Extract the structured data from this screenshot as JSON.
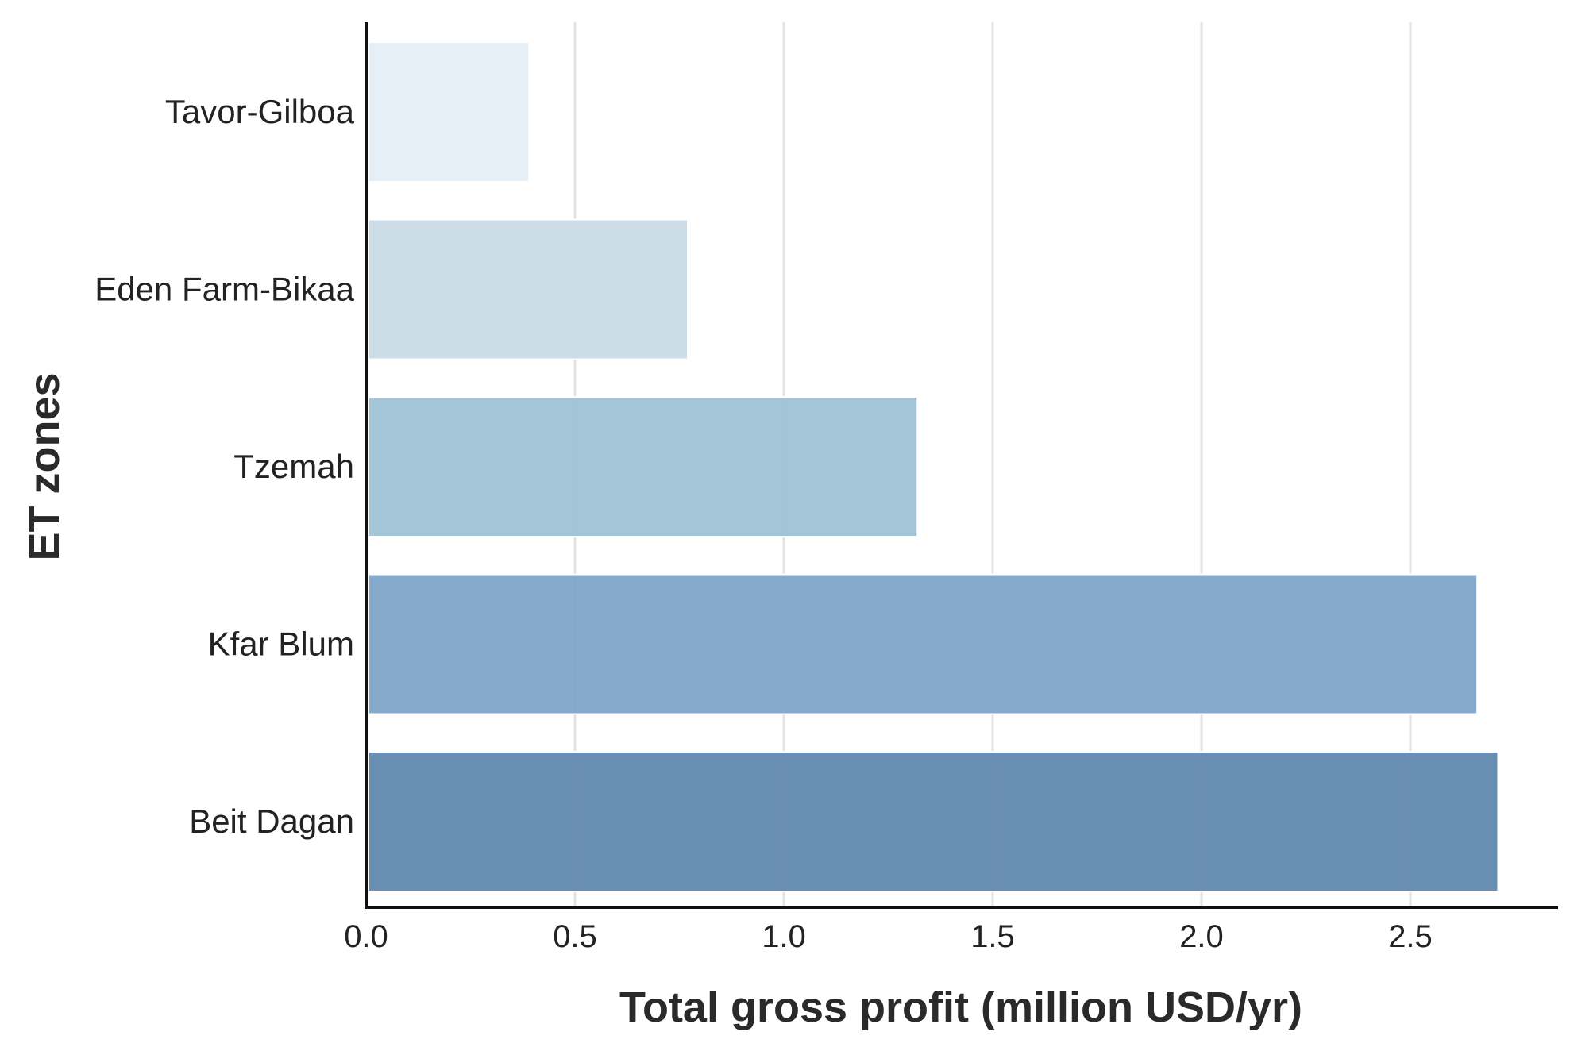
{
  "chart_data": {
    "type": "bar",
    "orientation": "horizontal",
    "categories": [
      "Tavor-Gilboa",
      "Eden Farm-Bikaa",
      "Tzemah",
      "Kfar Blum",
      "Beit Dagan"
    ],
    "values": [
      0.39,
      0.77,
      1.32,
      2.66,
      2.71
    ],
    "colors": [
      "#e5edf5",
      "#c9dbe7",
      "#9fc2d6",
      "#7ea5c8",
      "#6289b0"
    ],
    "xlabel": "Total gross profit (million USD/yr)",
    "ylabel": "ET zones",
    "xlim": [
      0,
      2.82
    ],
    "xticks": [
      "0.0",
      "0.5",
      "1.0",
      "1.5",
      "2.0",
      "2.5"
    ],
    "grid": "vertical",
    "legend": "none"
  }
}
